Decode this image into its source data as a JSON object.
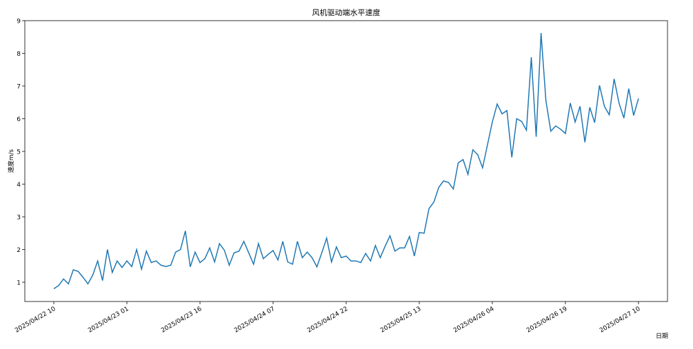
{
  "chart_data": {
    "type": "line",
    "title": "风机驱动端水平速度",
    "y_label": "速度m/s",
    "x_label": "日期",
    "categories": [
      "2025/04/22 10",
      null,
      null,
      null,
      null,
      null,
      null,
      null,
      null,
      null,
      null,
      null,
      null,
      null,
      null,
      "2025/04/23 01",
      null,
      null,
      null,
      null,
      null,
      null,
      null,
      null,
      null,
      null,
      null,
      null,
      null,
      null,
      "2025/04/23 16",
      null,
      null,
      null,
      null,
      null,
      null,
      null,
      null,
      null,
      null,
      null,
      null,
      null,
      null,
      "2025/04/24 07",
      null,
      null,
      null,
      null,
      null,
      null,
      null,
      null,
      null,
      null,
      null,
      null,
      null,
      null,
      "2025/04/24 22",
      null,
      null,
      null,
      null,
      null,
      null,
      null,
      null,
      null,
      null,
      null,
      null,
      null,
      null,
      "2025/04/25 13",
      null,
      null,
      null,
      null,
      null,
      null,
      null,
      null,
      null,
      null,
      null,
      null,
      null,
      null,
      "2025/04/26 04",
      null,
      null,
      null,
      null,
      null,
      null,
      null,
      null,
      null,
      null,
      null,
      null,
      null,
      null,
      "2025/04/26 19",
      null,
      null,
      null,
      null,
      null,
      null,
      null,
      null,
      null,
      null,
      null,
      null,
      null,
      null,
      "2025/04/27 10"
    ],
    "values": [
      0.8,
      0.9,
      1.1,
      0.95,
      1.38,
      1.33,
      1.15,
      0.95,
      1.22,
      1.65,
      1.05,
      2.0,
      1.3,
      1.65,
      1.45,
      1.65,
      1.48,
      2.0,
      1.4,
      1.95,
      1.6,
      1.65,
      1.52,
      1.48,
      1.52,
      1.92,
      2.0,
      2.57,
      1.47,
      1.92,
      1.6,
      1.72,
      2.05,
      1.62,
      2.18,
      1.98,
      1.52,
      1.9,
      1.95,
      2.25,
      1.9,
      1.55,
      2.18,
      1.72,
      1.85,
      1.97,
      1.68,
      2.25,
      1.62,
      1.55,
      2.25,
      1.75,
      1.92,
      1.75,
      1.47,
      1.9,
      2.35,
      1.62,
      2.08,
      1.75,
      1.8,
      1.65,
      1.65,
      1.6,
      1.88,
      1.65,
      2.12,
      1.75,
      2.1,
      2.42,
      1.95,
      2.05,
      2.05,
      2.4,
      1.8,
      2.52,
      2.5,
      3.25,
      3.45,
      3.9,
      4.1,
      4.05,
      3.85,
      4.65,
      4.75,
      4.3,
      5.05,
      4.9,
      4.5,
      5.2,
      5.9,
      6.45,
      6.15,
      6.25,
      4.82,
      6.0,
      5.92,
      5.65,
      7.88,
      5.45,
      8.62,
      6.55,
      5.62,
      5.78,
      5.68,
      5.55,
      6.48,
      5.9,
      6.38,
      5.28,
      6.35,
      5.88,
      7.02,
      6.38,
      6.12,
      7.22,
      6.48,
      6.02,
      6.92,
      6.1,
      6.62
    ],
    "color": "#1f77b4",
    "ylim": [
      0.41,
      9
    ],
    "yticks": [
      1,
      2,
      3,
      4,
      5,
      6,
      7,
      8,
      9
    ]
  }
}
